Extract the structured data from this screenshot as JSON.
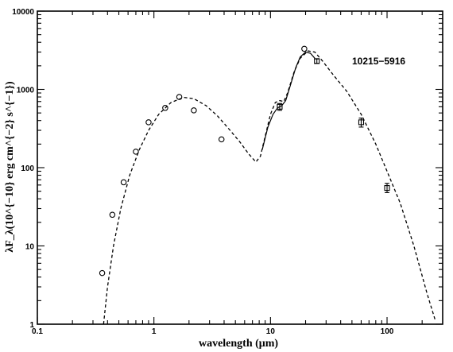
{
  "chart_data": {
    "type": "scatter",
    "annotation": "10215−5916",
    "xlabel": "wavelength (μm)",
    "ylabel": "λF_λ(10^{−10} erg cm^{−2} s^{−1})",
    "xscale": "log",
    "yscale": "log",
    "xlim": [
      0.1,
      300
    ],
    "ylim": [
      1,
      10000
    ],
    "x_ticks": [
      {
        "value": 0.1,
        "label": "0.1"
      },
      {
        "value": 1,
        "label": "1"
      },
      {
        "value": 10,
        "label": "10"
      },
      {
        "value": 100,
        "label": "100"
      }
    ],
    "y_ticks": [
      {
        "value": 1,
        "label": "1"
      },
      {
        "value": 10,
        "label": "10"
      },
      {
        "value": 100,
        "label": "100"
      },
      {
        "value": 1000,
        "label": "1000"
      },
      {
        "value": 10000,
        "label": "10000"
      }
    ],
    "grid": false,
    "series": [
      {
        "style": "circle",
        "points": [
          {
            "x": 0.36,
            "y": 4.5
          },
          {
            "x": 0.44,
            "y": 25
          },
          {
            "x": 0.55,
            "y": 65
          },
          {
            "x": 0.7,
            "y": 160
          },
          {
            "x": 0.9,
            "y": 380
          },
          {
            "x": 1.25,
            "y": 580
          },
          {
            "x": 1.65,
            "y": 800
          },
          {
            "x": 2.2,
            "y": 540
          },
          {
            "x": 3.8,
            "y": 230
          },
          {
            "x": 19.5,
            "y": 3300
          }
        ]
      },
      {
        "style": "square",
        "points": [
          {
            "x": 12,
            "y": 600,
            "yerr_low": 540,
            "yerr_high": 660
          },
          {
            "x": 25,
            "y": 2300,
            "yerr_low": 2150,
            "yerr_high": 2450
          },
          {
            "x": 60,
            "y": 380,
            "yerr_low": 330,
            "yerr_high": 430
          },
          {
            "x": 100,
            "y": 55,
            "yerr_low": 48,
            "yerr_high": 63
          }
        ]
      },
      {
        "style": "dashed",
        "points": [
          {
            "x": 0.37,
            "y": 1.0
          },
          {
            "x": 0.4,
            "y": 3
          },
          {
            "x": 0.45,
            "y": 10
          },
          {
            "x": 0.52,
            "y": 30
          },
          {
            "x": 0.62,
            "y": 80
          },
          {
            "x": 0.75,
            "y": 170
          },
          {
            "x": 0.9,
            "y": 300
          },
          {
            "x": 1.1,
            "y": 480
          },
          {
            "x": 1.4,
            "y": 680
          },
          {
            "x": 1.8,
            "y": 790
          },
          {
            "x": 2.2,
            "y": 760
          },
          {
            "x": 2.8,
            "y": 620
          },
          {
            "x": 3.5,
            "y": 460
          },
          {
            "x": 4.5,
            "y": 300
          },
          {
            "x": 5.5,
            "y": 210
          },
          {
            "x": 6.5,
            "y": 150
          },
          {
            "x": 7.5,
            "y": 118
          },
          {
            "x": 8.2,
            "y": 140
          },
          {
            "x": 9.0,
            "y": 250
          },
          {
            "x": 10.0,
            "y": 480
          },
          {
            "x": 11.0,
            "y": 680
          },
          {
            "x": 12.0,
            "y": 720
          },
          {
            "x": 13.0,
            "y": 700
          },
          {
            "x": 14.0,
            "y": 900
          },
          {
            "x": 16.0,
            "y": 1700
          },
          {
            "x": 18.0,
            "y": 2500
          },
          {
            "x": 21.0,
            "y": 3100
          },
          {
            "x": 24.0,
            "y": 3000
          },
          {
            "x": 28.0,
            "y": 2300
          },
          {
            "x": 35.0,
            "y": 1500
          },
          {
            "x": 45.0,
            "y": 950
          },
          {
            "x": 60.0,
            "y": 480
          },
          {
            "x": 80.0,
            "y": 200
          },
          {
            "x": 100.0,
            "y": 90
          },
          {
            "x": 130.0,
            "y": 35
          },
          {
            "x": 170.0,
            "y": 10
          },
          {
            "x": 220.0,
            "y": 2.5
          },
          {
            "x": 260.0,
            "y": 1.1
          }
        ]
      },
      {
        "style": "solid",
        "points": [
          {
            "x": 8.5,
            "y": 170
          },
          {
            "x": 9.5,
            "y": 330
          },
          {
            "x": 10.5,
            "y": 480
          },
          {
            "x": 11.5,
            "y": 580
          },
          {
            "x": 12.5,
            "y": 620
          },
          {
            "x": 13.5,
            "y": 720
          },
          {
            "x": 15.0,
            "y": 1200
          },
          {
            "x": 16.5,
            "y": 1900
          },
          {
            "x": 18.0,
            "y": 2600
          },
          {
            "x": 20.0,
            "y": 3000
          },
          {
            "x": 22.0,
            "y": 2900
          },
          {
            "x": 24.0,
            "y": 2500
          }
        ]
      }
    ]
  }
}
